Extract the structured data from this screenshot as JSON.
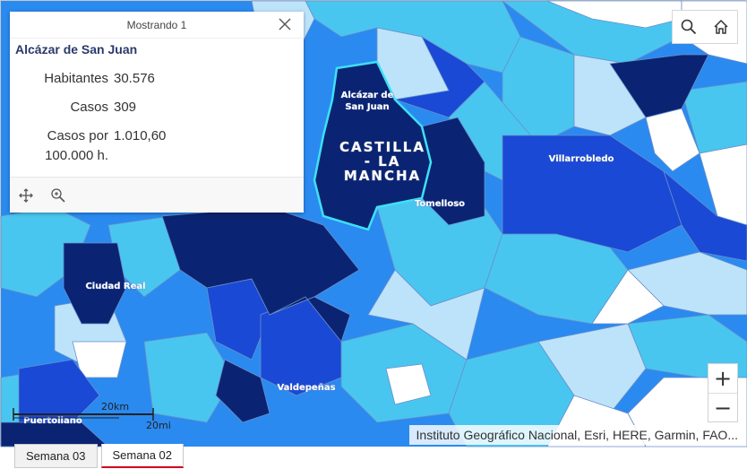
{
  "popup": {
    "count_label": "Mostrando 1",
    "title": "Alcázar de San Juan",
    "fields": [
      {
        "label": "Habitantes",
        "value": "30.576"
      },
      {
        "label": "Casos",
        "value": "309"
      },
      {
        "label": "Casos por 100.000 h.",
        "value": "1.010,60"
      }
    ],
    "icons": {
      "close": "close-icon",
      "pan": "pan-to-icon",
      "zoom": "zoom-to-icon"
    }
  },
  "map": {
    "region_label": "CASTILLA - LA MANCHA",
    "region_label_lines": [
      "CASTILLA",
      "- LA",
      "MANCHA"
    ],
    "place_labels": {
      "alcazar_line1": "Alcázar de",
      "alcazar_line2": "San Juan",
      "villarrobledo": "Villarrobledo",
      "tomelloso": "Tomelloso",
      "ciudad_real": "Ciudad Real",
      "valdepenas": "Valdepeñas",
      "puertollano": "Puertollano"
    },
    "attribution": "Instituto Geográfico Nacional, Esri, HERE, Garmin, FAO...",
    "scale": {
      "km": "20km",
      "mi": "20mi"
    },
    "zoom": {
      "in": "+",
      "out": "−"
    },
    "toolbar_icons": [
      "search-icon",
      "home-icon"
    ],
    "colors": {
      "very_high": "#0a2473",
      "high": "#1a49d6",
      "medium": "#2a8af0",
      "low": "#48c6f0",
      "very_low": "#bde3fb",
      "none": "#ffffff",
      "selection": "#3ee0f5"
    }
  },
  "tabs": [
    {
      "label": "Semana 03",
      "active": false
    },
    {
      "label": "Semana 02",
      "active": true
    }
  ]
}
